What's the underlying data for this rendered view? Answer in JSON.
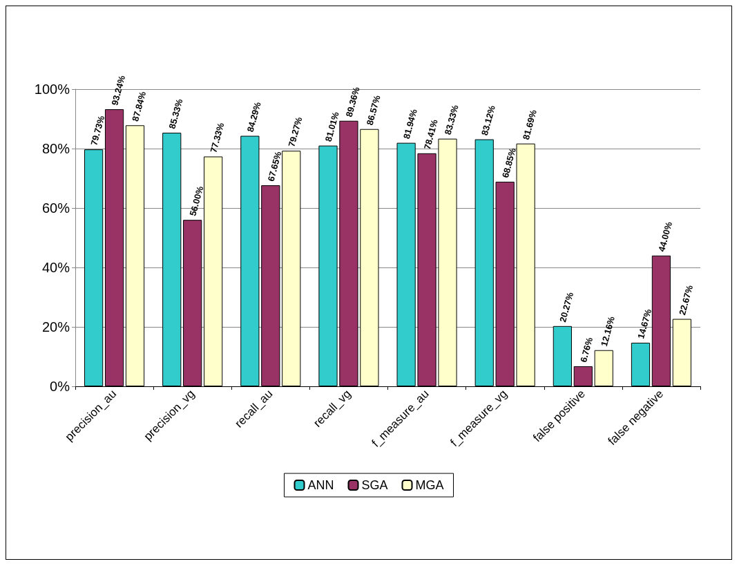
{
  "chart_data": {
    "type": "bar",
    "categories": [
      "precision_au",
      "precision_vg",
      "recall_au",
      "recall_vg",
      "f_measure_au",
      "f_measure_vg",
      "false positive",
      "false negative"
    ],
    "series": [
      {
        "name": "ANN",
        "color": "#33cccc",
        "values": [
          79.73,
          85.33,
          84.29,
          81.01,
          81.94,
          83.12,
          20.27,
          14.67
        ],
        "value_labels": [
          "79.73%",
          "85.33%",
          "84.29%",
          "81.01%",
          "81.94%",
          "83.12%",
          "20.27%",
          "14.67%"
        ]
      },
      {
        "name": "SGA",
        "color": "#993366",
        "values": [
          93.24,
          56.0,
          67.65,
          89.36,
          78.41,
          68.85,
          6.76,
          44.0
        ],
        "value_labels": [
          "93.24%",
          "56.00%",
          "67.65%",
          "89.36%",
          "78.41%",
          "68.85%",
          "6.76%",
          "44.00%"
        ]
      },
      {
        "name": "MGA",
        "color": "#ffffcc",
        "values": [
          87.84,
          77.33,
          79.27,
          86.57,
          83.33,
          81.69,
          12.16,
          22.67
        ],
        "value_labels": [
          "87.84%",
          "77.33%",
          "79.27%",
          "86.57%",
          "83.33%",
          "81.69%",
          "12.16%",
          "22.67%"
        ]
      }
    ],
    "ylim": [
      0,
      100
    ],
    "yticks": [
      {
        "value": 0,
        "label": "0%"
      },
      {
        "value": 20,
        "label": "20%"
      },
      {
        "value": 40,
        "label": "40%"
      },
      {
        "value": 60,
        "label": "60%"
      },
      {
        "value": 80,
        "label": "80%"
      },
      {
        "value": 100,
        "label": "100%"
      }
    ],
    "grid": "y",
    "legend": "bottom"
  }
}
